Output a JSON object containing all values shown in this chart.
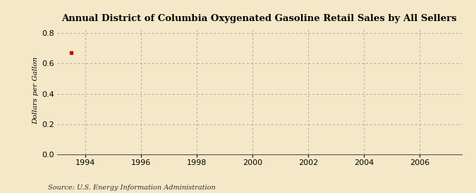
{
  "title": "Annual District of Columbia Oxygenated Gasoline Retail Sales by All Sellers",
  "ylabel": "Dollars per Gallon",
  "source": "Source: U.S. Energy Information Administration",
  "background_color": "#f5e8c8",
  "data_x": [
    1993.5
  ],
  "data_y": [
    0.673
  ],
  "data_color": "#cc0000",
  "xlim": [
    1993,
    2007.5
  ],
  "ylim": [
    0.0,
    0.84
  ],
  "xticks": [
    1994,
    1996,
    1998,
    2000,
    2002,
    2004,
    2006
  ],
  "yticks": [
    0.0,
    0.2,
    0.4,
    0.6,
    0.8
  ],
  "grid_color": "#aaaaaa",
  "title_fontsize": 9.5,
  "label_fontsize": 7.5,
  "tick_fontsize": 8,
  "source_fontsize": 7
}
